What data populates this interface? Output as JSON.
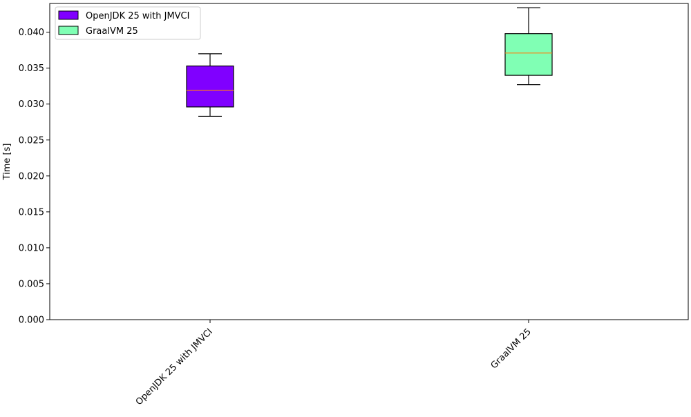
{
  "chart_data": {
    "type": "box",
    "title": "",
    "xlabel": "",
    "ylabel": "Time [s]",
    "ylim": [
      0.0,
      0.044
    ],
    "y_ticks": [
      0.0,
      0.005,
      0.01,
      0.015,
      0.02,
      0.025,
      0.03,
      0.035,
      0.04
    ],
    "y_tick_labels": [
      "0.000",
      "0.005",
      "0.010",
      "0.015",
      "0.020",
      "0.025",
      "0.030",
      "0.035",
      "0.040"
    ],
    "categories": [
      "OpenJDK 25 with JMVCI",
      "GraalVM 25"
    ],
    "legend": {
      "placement": "top-left",
      "entries": [
        "OpenJDK 25 with JMVCI",
        "GraalVM 25"
      ]
    },
    "series": [
      {
        "name": "OpenJDK 25 with JMVCI",
        "color": "#8000ff",
        "whisker_low": 0.0283,
        "q1": 0.0296,
        "median": 0.0319,
        "q3": 0.0353,
        "whisker_high": 0.037
      },
      {
        "name": "GraalVM 25",
        "color": "#80ffb4",
        "whisker_low": 0.0327,
        "q1": 0.034,
        "median": 0.0371,
        "q3": 0.0398,
        "whisker_high": 0.0434
      }
    ],
    "median_color": "#ff7f0e",
    "grid": false
  }
}
